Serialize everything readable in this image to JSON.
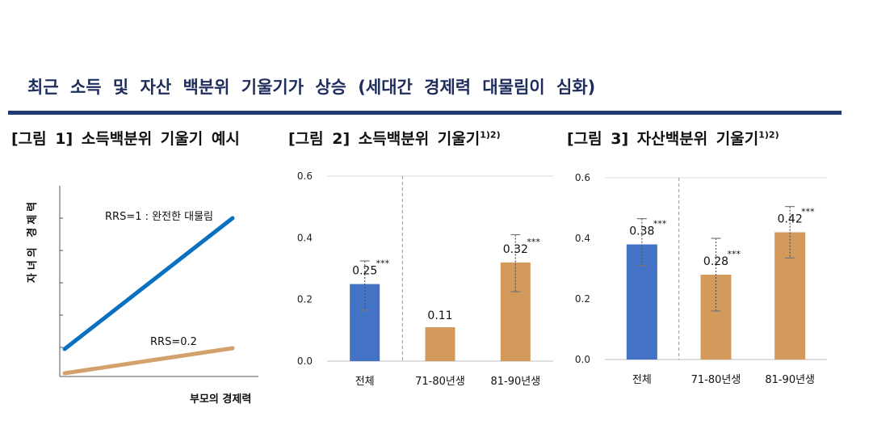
{
  "header": {
    "headline": "최근 소득 및 자산 백분위 기울기가 상승 (세대간 경제력 대물림이 심화)",
    "figures": [
      {
        "title": "[그림 1] 소득백분위 기울기 예시",
        "sup": ""
      },
      {
        "title": "[그림 2] 소득백분위 기울기",
        "sup": "1)2)"
      },
      {
        "title": "[그림 3] 자산백분위 기울기",
        "sup": "1)2)"
      }
    ]
  },
  "colors": {
    "blue": "#4472c4",
    "orange": "#d39a5b",
    "line_blue": "#0a70c0",
    "line_orange": "#d4a06b",
    "divider": "#999999"
  },
  "chart_data": [
    {
      "type": "line",
      "xlabel": "부모의 경제력",
      "ylabel": "자녀의 경제력",
      "grid": false,
      "series": [
        {
          "name": "RRS=1 : 완전한 대물림",
          "slope": 1
        },
        {
          "name": "RRS=0.2",
          "slope": 0.2
        }
      ]
    },
    {
      "type": "bar",
      "categories": [
        "전체",
        "71-80년생",
        "81-90년생"
      ],
      "values": [
        0.25,
        0.11,
        0.32
      ],
      "value_labels": [
        "0.25",
        "0.11",
        "0.32"
      ],
      "significance": [
        "***",
        "",
        "***"
      ],
      "error_low": [
        0.165,
        null,
        0.225
      ],
      "error_high": [
        0.325,
        null,
        0.41
      ],
      "bar_colors": [
        "#4472c4",
        "#d39a5b",
        "#d39a5b"
      ],
      "ylim": [
        0,
        0.6
      ],
      "yticks": [
        "0.0",
        "0.2",
        "0.4",
        "0.6"
      ],
      "grid": "top-line"
    },
    {
      "type": "bar",
      "categories": [
        "전체",
        "71-80년생",
        "81-90년생"
      ],
      "values": [
        0.38,
        0.28,
        0.42
      ],
      "value_labels": [
        "0.38",
        "0.28",
        "0.42"
      ],
      "significance": [
        "***",
        "***",
        "***"
      ],
      "error_low": [
        0.31,
        0.16,
        0.335
      ],
      "error_high": [
        0.465,
        0.4,
        0.505
      ],
      "bar_colors": [
        "#4472c4",
        "#d39a5b",
        "#d39a5b"
      ],
      "ylim": [
        0,
        0.6
      ],
      "yticks": [
        "0.0",
        "0.2",
        "0.4",
        "0.6"
      ],
      "grid": "top-line"
    }
  ]
}
